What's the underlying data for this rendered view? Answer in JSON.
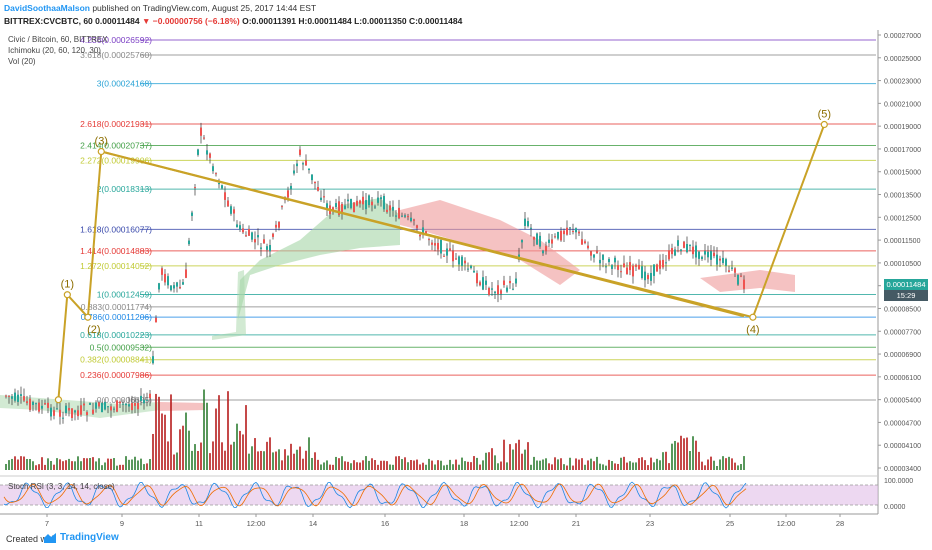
{
  "header": {
    "author": "DavidSoothaaMalson",
    "published_text": " published on TradingView.com, August 25, 2017 14:44 EST",
    "symbol": "BITTREX:CVCBTC, 60",
    "last": "0.00011484",
    "change": "▼ −0.00000756 (−6.18%)",
    "ohlc": "O:0.00011391 H:0.00011484 L:0.00011350 C:0.00011484"
  },
  "legend": {
    "title": "Civic / Bitcoin, 60, BITTREX",
    "ichimoku": "Ichimoku (20, 60, 120, 30)",
    "vol": "Vol (20)",
    "stoch": "Stoch RSI (3, 3, 14, 14, close)"
  },
  "footer": {
    "created": "Created with",
    "brand": "TradingView"
  },
  "price_tags": {
    "last": "0.00011484",
    "countdown": "15:29"
  },
  "colors": {
    "up": "#26a69a",
    "down": "#ef5350",
    "wave": "#c9a227",
    "cloud_green": "#a5d6a7",
    "cloud_red": "#ef9a9a",
    "stoch_fill": "#e1bee7"
  },
  "chart_data": {
    "type": "line",
    "title": "",
    "x_ticks": [
      "7",
      "9",
      "11",
      "12:00",
      "14",
      "16",
      "18",
      "12:00",
      "21",
      "23",
      "25",
      "12:00",
      "28"
    ],
    "y_ticks": [
      "0.00027000",
      "0.00025000",
      "0.00023000",
      "0.00021000",
      "0.00019000",
      "0.00017000",
      "0.00015000",
      "0.00013500",
      "0.00012500",
      "0.00011500",
      "0.00010500",
      "0.00009500",
      "0.00008500",
      "0.00007700",
      "0.00006900",
      "0.00006100",
      "0.00005400",
      "0.00004700",
      "0.00004100",
      "0.00003400"
    ],
    "ylim": [
      3.4e-05,
      0.00027
    ],
    "fib_levels": [
      {
        "label": "4.236(0.00026592)",
        "ratio": 4.236,
        "value": 0.00026592,
        "color": "#7b3fc4"
      },
      {
        "label": "3.618(0.00025760)",
        "ratio": 3.618,
        "value": 0.0002576,
        "color": "#888888"
      },
      {
        "label": "3(0.00024168)",
        "ratio": 3,
        "value": 0.00024168,
        "color": "#29a3d6"
      },
      {
        "label": "2.618(0.00021931)",
        "ratio": 2.618,
        "value": 0.00021931,
        "color": "#e53935"
      },
      {
        "label": "2.414(0.00020737)",
        "ratio": 2.414,
        "value": 0.00020737,
        "color": "#43a047"
      },
      {
        "label": "2.272(0.00019906)",
        "ratio": 2.272,
        "value": 0.00019906,
        "color": "#c0ca33"
      },
      {
        "label": "2(0.00018313)",
        "ratio": 2,
        "value": 0.00018313,
        "color": "#26a69a"
      },
      {
        "label": "1.618(0.00016077)",
        "ratio": 1.618,
        "value": 0.00016077,
        "color": "#3949ab"
      },
      {
        "label": "1.414(0.00014883)",
        "ratio": 1.414,
        "value": 0.00014883,
        "color": "#e53935"
      },
      {
        "label": "1.272(0.00014052)",
        "ratio": 1.272,
        "value": 0.00014052,
        "color": "#c0ca33"
      },
      {
        "label": "1(0.00012459)",
        "ratio": 1,
        "value": 0.00012459,
        "color": "#26a69a"
      },
      {
        "label": "0.883(0.00011774)",
        "ratio": 0.883,
        "value": 0.00011774,
        "color": "#888888"
      },
      {
        "label": "0.786(0.00011206)",
        "ratio": 0.786,
        "value": 0.00011206,
        "color": "#1e88e5"
      },
      {
        "label": "0.618(0.00010223)",
        "ratio": 0.618,
        "value": 0.00010223,
        "color": "#26a69a"
      },
      {
        "label": "0.5(0.00009532)",
        "ratio": 0.5,
        "value": 9.532e-05,
        "color": "#43a047"
      },
      {
        "label": "0.382(0.00008841)",
        "ratio": 0.382,
        "value": 8.841e-05,
        "color": "#c0ca33"
      },
      {
        "label": "0.236(0.00007986)",
        "ratio": 0.236,
        "value": 7.986e-05,
        "color": "#e53935"
      },
      {
        "label": "0(0.00006605)",
        "ratio": 0,
        "value": 6.605e-05,
        "color": "#888888"
      }
    ],
    "wave_points": [
      {
        "label": "",
        "x": 1.52,
        "y": 6.62e-05
      },
      {
        "label": "(1)",
        "x": 1.62,
        "y": 0.0001245
      },
      {
        "label": "(2)",
        "x": 1.85,
        "y": 0.000112
      },
      {
        "label": "(3)",
        "x": 2.0,
        "y": 0.000204
      },
      {
        "label": "(4)",
        "x": 9.3,
        "y": 0.000112
      },
      {
        "label": "(5)",
        "x": 10.1,
        "y": 0.000219
      }
    ],
    "trendline": {
      "from": {
        "x": 2.0,
        "y": 0.000204
      },
      "to": {
        "x": 9.2,
        "y": 0.0001125
      }
    }
  }
}
